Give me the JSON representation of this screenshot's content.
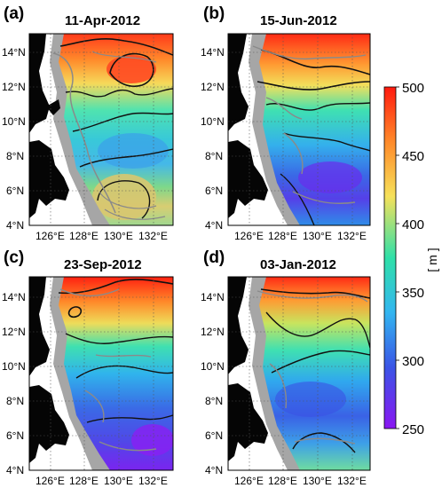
{
  "panels": [
    {
      "label": "(a)",
      "title": "11-Apr-2012"
    },
    {
      "label": "(b)",
      "title": "15-Jun-2012"
    },
    {
      "label": "(c)",
      "title": "23-Sep-2012"
    },
    {
      "label": "(d)",
      "title": "03-Jan-2012"
    }
  ],
  "axes": {
    "lat_labels": [
      "14°N",
      "12°N",
      "10°N",
      "8°N",
      "6°N",
      "4°N"
    ],
    "lon_labels": [
      "126°E",
      "128°E",
      "130°E",
      "132°E"
    ]
  },
  "colorbar": {
    "ticks": [
      "500",
      "450",
      "400",
      "350",
      "300",
      "250"
    ],
    "unit": "[ m ]",
    "range": [
      250,
      500
    ],
    "colors": [
      "#ff1a0f",
      "#ff8a2a",
      "#f6e15a",
      "#2fe0a8",
      "#33b6f0",
      "#3a55e6",
      "#8a17f2"
    ]
  },
  "palette": {
    "land": "#050505",
    "shelf": "#a6a6a6",
    "contour": "#111111",
    "grid": "#555555"
  }
}
